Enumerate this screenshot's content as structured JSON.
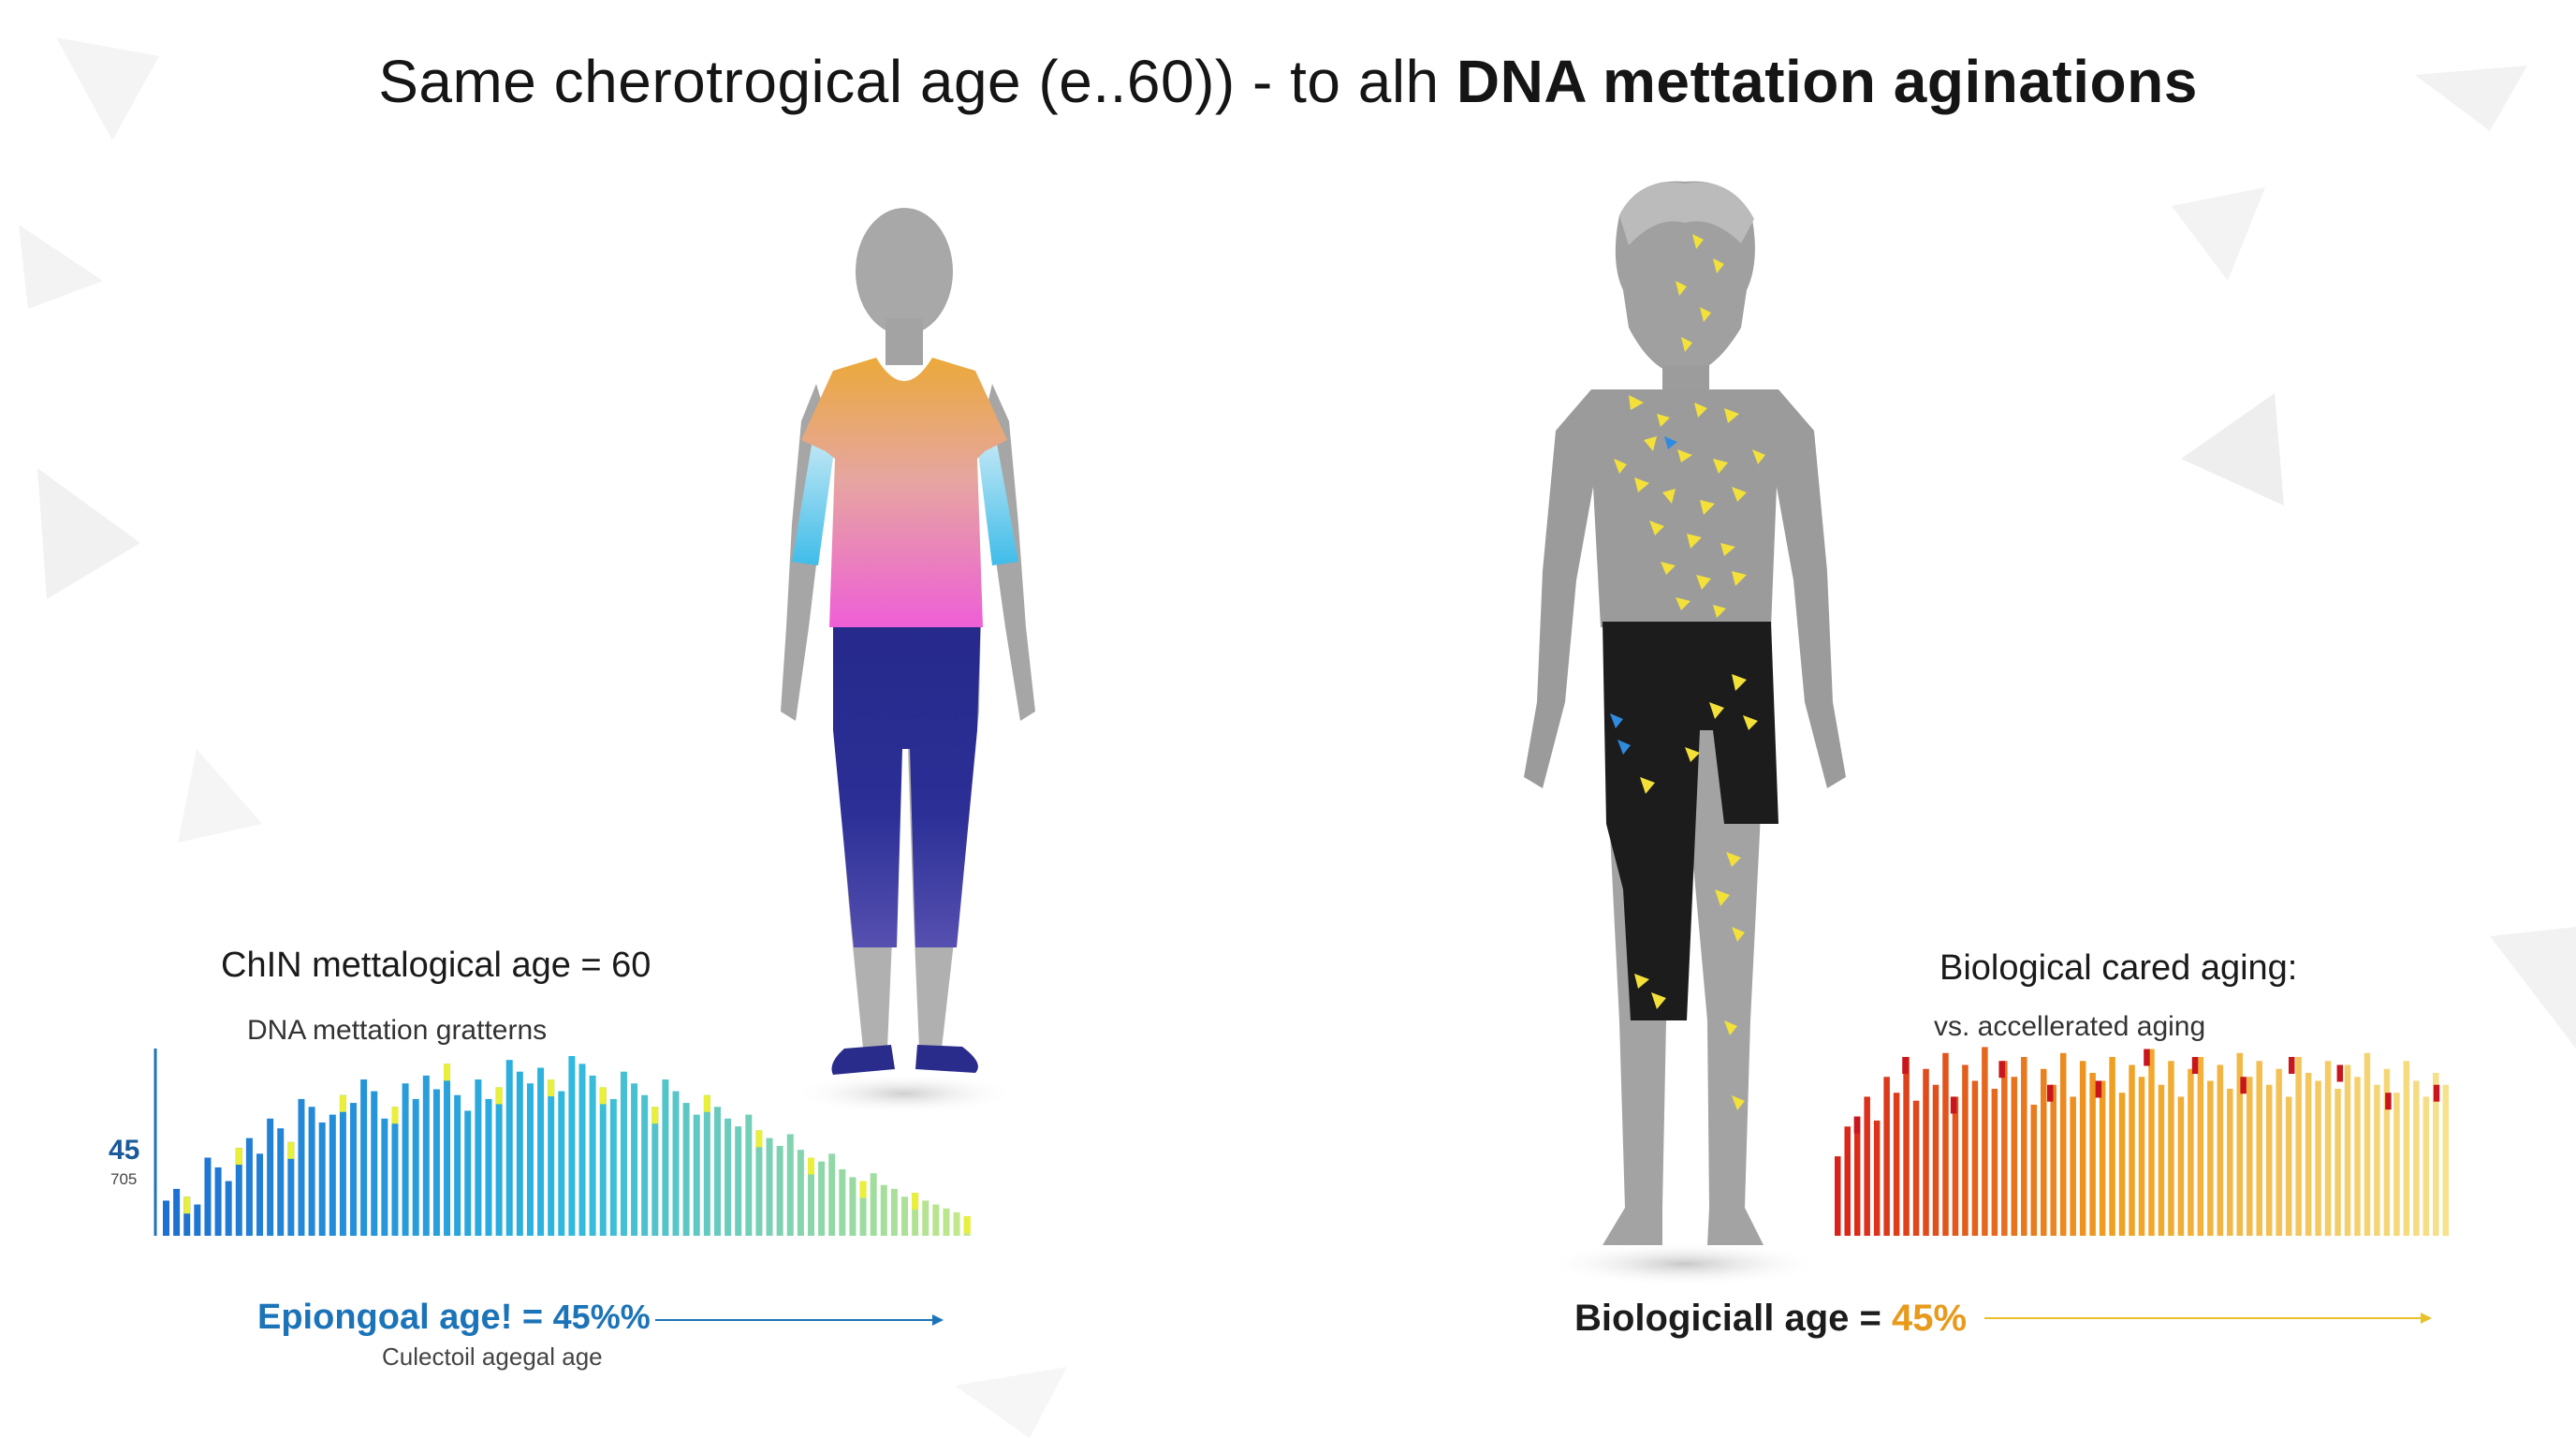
{
  "title": {
    "part1": "Same cherotrogical age (e..60)) - to alh ",
    "part2": "DNA mettation aginations"
  },
  "left_panel": {
    "heading": "ChIN mettalogical age = 60",
    "subheading": "DNA mettation gratterns",
    "axis_main": "45",
    "axis_sub": "705",
    "result_label": "Epiongoal age! = ",
    "result_value": "45%%",
    "footnote": "Culectoil agegal age"
  },
  "right_panel": {
    "heading": "Biological cared aging:",
    "subheading": "vs. accellerated aging",
    "result_label": "Biologiciall age = ",
    "result_value": "45%"
  },
  "colors": {
    "accent_blue": "#1b73b8",
    "accent_orange": "#e89a1c",
    "shirt_top": "#eba93a",
    "shirt_bottom": "#ee5fd6",
    "leggings": "#2a2e8e",
    "sleeve": "#4ec4ea",
    "body_gray": "#9b9b9b",
    "mutation_yellow": "#f3e13a"
  },
  "chart_data": [
    {
      "type": "bar",
      "title": "DNA mettation gratterns",
      "values": [
        18,
        24,
        20,
        16,
        40,
        35,
        28,
        45,
        50,
        42,
        60,
        55,
        48,
        70,
        66,
        58,
        62,
        72,
        68,
        80,
        74,
        60,
        66,
        78,
        70,
        82,
        75,
        88,
        72,
        64,
        80,
        70,
        76,
        90,
        84,
        78,
        86,
        80,
        74,
        92,
        88,
        82,
        76,
        70,
        84,
        78,
        72,
        66,
        80,
        74,
        68,
        62,
        72,
        66,
        60,
        56,
        62,
        54,
        50,
        46,
        52,
        44,
        40,
        38,
        42,
        34,
        30,
        28,
        32,
        26,
        24,
        20,
        22,
        18,
        16,
        14,
        12,
        10
      ]
    },
    {
      "type": "bar",
      "title": "vs. accellerated aging",
      "values": [
        40,
        55,
        60,
        70,
        58,
        80,
        72,
        90,
        68,
        84,
        76,
        92,
        70,
        86,
        78,
        95,
        74,
        88,
        80,
        90,
        66,
        84,
        76,
        92,
        70,
        88,
        82,
        78,
        90,
        72,
        86,
        80,
        94,
        76,
        88,
        70,
        84,
        90,
        78,
        86,
        74,
        92,
        80,
        88,
        76,
        84,
        70,
        90,
        82,
        78,
        88,
        74,
        86,
        80,
        92,
        76,
        84,
        72,
        88,
        78,
        70,
        82,
        76
      ]
    }
  ]
}
